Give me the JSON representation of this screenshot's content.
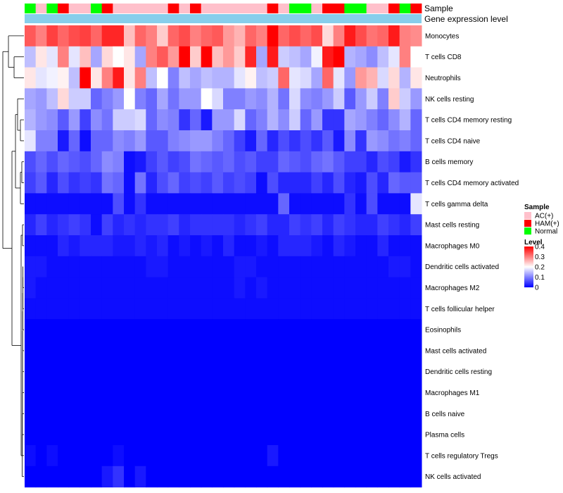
{
  "chart_data": {
    "type": "heatmap",
    "title": "",
    "annotation_rows": [
      "Sample",
      "Gene expression level"
    ],
    "sample_groups": [
      {
        "name": "AC(+)",
        "color": "#FFC0CB"
      },
      {
        "name": "HAM(+)",
        "color": "#FF0000"
      },
      {
        "name": "Normal",
        "color": "#00FF00"
      }
    ],
    "gene_expression_color": "#87CEEB",
    "column_samples": [
      "Normal",
      "AC(+)",
      "Normal",
      "HAM(+)",
      "AC(+)",
      "AC(+)",
      "Normal",
      "HAM(+)",
      "AC(+)",
      "AC(+)",
      "AC(+)",
      "AC(+)",
      "AC(+)",
      "HAM(+)",
      "AC(+)",
      "HAM(+)",
      "AC(+)",
      "AC(+)",
      "AC(+)",
      "AC(+)",
      "AC(+)",
      "AC(+)",
      "HAM(+)",
      "AC(+)",
      "Normal",
      "Normal",
      "AC(+)",
      "HAM(+)",
      "HAM(+)",
      "Normal",
      "Normal",
      "AC(+)",
      "AC(+)",
      "HAM(+)",
      "Normal",
      "HAM(+)"
    ],
    "rows": [
      "Monocytes",
      "T cells CD8",
      "Neutrophils",
      "NK cells resting",
      "T cells CD4 memory resting",
      "T cells CD4 naive",
      "B cells memory",
      "T cells CD4 memory activated",
      "T cells gamma delta",
      "Mast cells resting",
      "Macrophages M0",
      "Dendritic cells activated",
      "Macrophages M2",
      "T cells follicular helper",
      "Eosinophils",
      "Mast cells activated",
      "Dendritic cells resting",
      "Macrophages M1",
      "B cells naive",
      "Plasma cells",
      "T cells regulatory  Tregs",
      "NK cells activated"
    ],
    "values": [
      [
        0.33,
        0.3,
        0.35,
        0.32,
        0.34,
        0.35,
        0.32,
        0.37,
        0.37,
        0.25,
        0.32,
        0.3,
        0.24,
        0.32,
        0.34,
        0.3,
        0.32,
        0.33,
        0.28,
        0.26,
        0.32,
        0.3,
        0.4,
        0.32,
        0.34,
        0.32,
        0.34,
        0.23,
        0.3,
        0.38,
        0.34,
        0.31,
        0.32,
        0.38,
        0.3,
        0.29
      ],
      [
        0.15,
        0.22,
        0.18,
        0.3,
        0.18,
        0.25,
        0.13,
        0.23,
        0.2,
        0.22,
        0.13,
        0.3,
        0.33,
        0.28,
        0.4,
        0.24,
        0.4,
        0.25,
        0.28,
        0.24,
        0.37,
        0.13,
        0.38,
        0.16,
        0.15,
        0.13,
        0.19,
        0.38,
        0.4,
        0.14,
        0.13,
        0.11,
        0.15,
        0.18,
        0.3,
        0.2
      ],
      [
        0.22,
        0.18,
        0.19,
        0.21,
        0.15,
        0.4,
        0.22,
        0.3,
        0.38,
        0.22,
        0.3,
        0.15,
        0.2,
        0.1,
        0.15,
        0.13,
        0.15,
        0.14,
        0.14,
        0.18,
        0.21,
        0.15,
        0.16,
        0.32,
        0.18,
        0.17,
        0.13,
        0.32,
        0.18,
        0.12,
        0.28,
        0.26,
        0.17,
        0.23,
        0.14,
        0.22
      ],
      [
        0.13,
        0.12,
        0.15,
        0.23,
        0.16,
        0.16,
        0.08,
        0.1,
        0.12,
        0.2,
        0.1,
        0.08,
        0.13,
        0.09,
        0.12,
        0.12,
        0.2,
        0.17,
        0.1,
        0.1,
        0.12,
        0.11,
        0.14,
        0.09,
        0.17,
        0.11,
        0.1,
        0.12,
        0.16,
        0.07,
        0.12,
        0.16,
        0.1,
        0.24,
        0.16,
        0.12
      ],
      [
        0.14,
        0.12,
        0.11,
        0.07,
        0.12,
        0.05,
        0.11,
        0.09,
        0.16,
        0.16,
        0.17,
        0.08,
        0.11,
        0.1,
        0.04,
        0.08,
        0.02,
        0.12,
        0.12,
        0.17,
        0.08,
        0.1,
        0.14,
        0.11,
        0.16,
        0.08,
        0.12,
        0.04,
        0.04,
        0.13,
        0.12,
        0.1,
        0.08,
        0.11,
        0.14,
        0.08
      ],
      [
        0.18,
        0.1,
        0.1,
        0.02,
        0.08,
        0.01,
        0.08,
        0.08,
        0.11,
        0.1,
        0.12,
        0.07,
        0.07,
        0.1,
        0.11,
        0.12,
        0.12,
        0.1,
        0.08,
        0.05,
        0.02,
        0.08,
        0.03,
        0.06,
        0.04,
        0.06,
        0.04,
        0.07,
        0.02,
        0.11,
        0.04,
        0.12,
        0.11,
        0.09,
        0.1,
        0.08
      ],
      [
        0.06,
        0.08,
        0.06,
        0.08,
        0.07,
        0.06,
        0.08,
        0.11,
        0.1,
        0.01,
        0.02,
        0.05,
        0.07,
        0.05,
        0.06,
        0.09,
        0.08,
        0.07,
        0.08,
        0.06,
        0.07,
        0.05,
        0.05,
        0.08,
        0.07,
        0.06,
        0.08,
        0.09,
        0.07,
        0.05,
        0.05,
        0.03,
        0.06,
        0.05,
        0.02,
        0.04
      ],
      [
        0.05,
        0.07,
        0.03,
        0.06,
        0.04,
        0.05,
        0.04,
        0.09,
        0.08,
        0.01,
        0.09,
        0.03,
        0.06,
        0.08,
        0.05,
        0.06,
        0.05,
        0.07,
        0.05,
        0.06,
        0.05,
        0.01,
        0.06,
        0.03,
        0.03,
        0.03,
        0.05,
        0.03,
        0.06,
        0.03,
        0.02,
        0.06,
        0.03,
        0.08,
        0.07,
        0.07
      ],
      [
        0.01,
        0.01,
        0.01,
        0.01,
        0.01,
        0.01,
        0.01,
        0.01,
        0.06,
        0.01,
        0.04,
        0.01,
        0.01,
        0.01,
        0.01,
        0.01,
        0.01,
        0.01,
        0.01,
        0.01,
        0.01,
        0.01,
        0.01,
        0.08,
        0.01,
        0.01,
        0.01,
        0.01,
        0.01,
        0.04,
        0.01,
        0.06,
        0.01,
        0.01,
        0.01,
        0.18
      ],
      [
        0.03,
        0.05,
        0.03,
        0.04,
        0.05,
        0.04,
        0.01,
        0.05,
        0.03,
        0.04,
        0.03,
        0.04,
        0.04,
        0.05,
        0.03,
        0.04,
        0.04,
        0.04,
        0.04,
        0.03,
        0.04,
        0.05,
        0.03,
        0.03,
        0.05,
        0.04,
        0.05,
        0.03,
        0.05,
        0.04,
        0.03,
        0.03,
        0.05,
        0.04,
        0.03,
        0.05
      ],
      [
        0.01,
        0.01,
        0.01,
        0.03,
        0.02,
        0.03,
        0.03,
        0.03,
        0.02,
        0.02,
        0.03,
        0.02,
        0.03,
        0.01,
        0.02,
        0.01,
        0.02,
        0.01,
        0.03,
        0.01,
        0.01,
        0.02,
        0.01,
        0.03,
        0.03,
        0.03,
        0.02,
        0.01,
        0.03,
        0.02,
        0.01,
        0.01,
        0.03,
        0.01,
        0.01,
        0.01
      ],
      [
        0.02,
        0.02,
        0.01,
        0.01,
        0.01,
        0.01,
        0.01,
        0.01,
        0.01,
        0.01,
        0.01,
        0.02,
        0.02,
        0.01,
        0.01,
        0.01,
        0.01,
        0.01,
        0.01,
        0.02,
        0.02,
        0.01,
        0.01,
        0.01,
        0.01,
        0.01,
        0.01,
        0.01,
        0.01,
        0.01,
        0.01,
        0.01,
        0.01,
        0.02,
        0.02,
        0.01
      ],
      [
        0.02,
        0.01,
        0.01,
        0.01,
        0.01,
        0.01,
        0.01,
        0.01,
        0.01,
        0.01,
        0.01,
        0.01,
        0.01,
        0.01,
        0.01,
        0.01,
        0.01,
        0.01,
        0.01,
        0.02,
        0.01,
        0.02,
        0.01,
        0.01,
        0.01,
        0.01,
        0.01,
        0.01,
        0.01,
        0.01,
        0.01,
        0.01,
        0.01,
        0.01,
        0.01,
        0.01
      ],
      [
        0.01,
        0.01,
        0.01,
        0.01,
        0.01,
        0.01,
        0.01,
        0.01,
        0.01,
        0.01,
        0.01,
        0.01,
        0.01,
        0.01,
        0.01,
        0.01,
        0.01,
        0.01,
        0.01,
        0.01,
        0.01,
        0.01,
        0.01,
        0.01,
        0.01,
        0.01,
        0.01,
        0.01,
        0.01,
        0.01,
        0.01,
        0.01,
        0.01,
        0.01,
        0.01,
        0.01
      ],
      [
        0.0,
        0.0,
        0.0,
        0.0,
        0.0,
        0.0,
        0.0,
        0.0,
        0.0,
        0.0,
        0.0,
        0.0,
        0.0,
        0.0,
        0.0,
        0.0,
        0.0,
        0.0,
        0.0,
        0.0,
        0.0,
        0.0,
        0.0,
        0.0,
        0.0,
        0.0,
        0.0,
        0.0,
        0.0,
        0.0,
        0.0,
        0.0,
        0.0,
        0.0,
        0.0,
        0.0
      ],
      [
        0.0,
        0.0,
        0.0,
        0.0,
        0.0,
        0.0,
        0.0,
        0.0,
        0.0,
        0.0,
        0.0,
        0.0,
        0.0,
        0.0,
        0.0,
        0.0,
        0.0,
        0.0,
        0.0,
        0.0,
        0.0,
        0.0,
        0.0,
        0.0,
        0.0,
        0.0,
        0.0,
        0.0,
        0.0,
        0.0,
        0.0,
        0.0,
        0.0,
        0.0,
        0.0,
        0.0
      ],
      [
        0.0,
        0.0,
        0.0,
        0.0,
        0.0,
        0.0,
        0.0,
        0.0,
        0.0,
        0.0,
        0.0,
        0.0,
        0.0,
        0.0,
        0.0,
        0.0,
        0.0,
        0.0,
        0.0,
        0.0,
        0.0,
        0.0,
        0.0,
        0.0,
        0.0,
        0.0,
        0.0,
        0.0,
        0.0,
        0.0,
        0.0,
        0.0,
        0.0,
        0.0,
        0.0,
        0.0
      ],
      [
        0.0,
        0.0,
        0.0,
        0.0,
        0.0,
        0.0,
        0.0,
        0.0,
        0.0,
        0.0,
        0.0,
        0.0,
        0.0,
        0.0,
        0.0,
        0.0,
        0.0,
        0.0,
        0.0,
        0.0,
        0.0,
        0.0,
        0.0,
        0.0,
        0.0,
        0.0,
        0.0,
        0.0,
        0.0,
        0.0,
        0.0,
        0.0,
        0.0,
        0.0,
        0.0,
        0.0
      ],
      [
        0.0,
        0.0,
        0.0,
        0.0,
        0.0,
        0.0,
        0.0,
        0.0,
        0.0,
        0.0,
        0.0,
        0.0,
        0.0,
        0.0,
        0.0,
        0.0,
        0.0,
        0.0,
        0.0,
        0.0,
        0.0,
        0.0,
        0.0,
        0.0,
        0.0,
        0.0,
        0.0,
        0.0,
        0.0,
        0.0,
        0.0,
        0.0,
        0.0,
        0.0,
        0.0,
        0.0
      ],
      [
        0.0,
        0.0,
        0.0,
        0.0,
        0.0,
        0.0,
        0.0,
        0.0,
        0.0,
        0.0,
        0.0,
        0.0,
        0.0,
        0.0,
        0.0,
        0.0,
        0.0,
        0.0,
        0.0,
        0.0,
        0.0,
        0.0,
        0.0,
        0.0,
        0.0,
        0.0,
        0.0,
        0.0,
        0.0,
        0.0,
        0.0,
        0.0,
        0.0,
        0.0,
        0.0,
        0.0
      ],
      [
        0.01,
        0.0,
        0.01,
        0.0,
        0.0,
        0.0,
        0.0,
        0.0,
        0.01,
        0.0,
        0.0,
        0.0,
        0.0,
        0.0,
        0.0,
        0.0,
        0.0,
        0.0,
        0.0,
        0.0,
        0.0,
        0.0,
        0.02,
        0.0,
        0.0,
        0.0,
        0.0,
        0.0,
        0.0,
        0.0,
        0.0,
        0.0,
        0.0,
        0.0,
        0.0,
        0.0
      ],
      [
        0.0,
        0.0,
        0.0,
        0.0,
        0.0,
        0.0,
        0.0,
        0.02,
        0.04,
        0.0,
        0.02,
        0.0,
        0.0,
        0.0,
        0.0,
        0.0,
        0.0,
        0.0,
        0.0,
        0.0,
        0.0,
        0.0,
        0.0,
        0.0,
        0.0,
        0.0,
        0.0,
        0.0,
        0.0,
        0.0,
        0.0,
        0.0,
        0.0,
        0.0,
        0.0,
        0.0
      ]
    ],
    "legend_title_sample": "Sample",
    "legend_title_level": "Level",
    "level_ticks": [
      "0.4",
      "0.3",
      "0.2",
      "0.1",
      "0"
    ],
    "level_range": [
      0,
      0.4
    ],
    "color_scale": {
      "low": "#0000FF",
      "mid": "#FFFFFF",
      "high": "#FF0000",
      "midpoint": 0.2
    }
  }
}
